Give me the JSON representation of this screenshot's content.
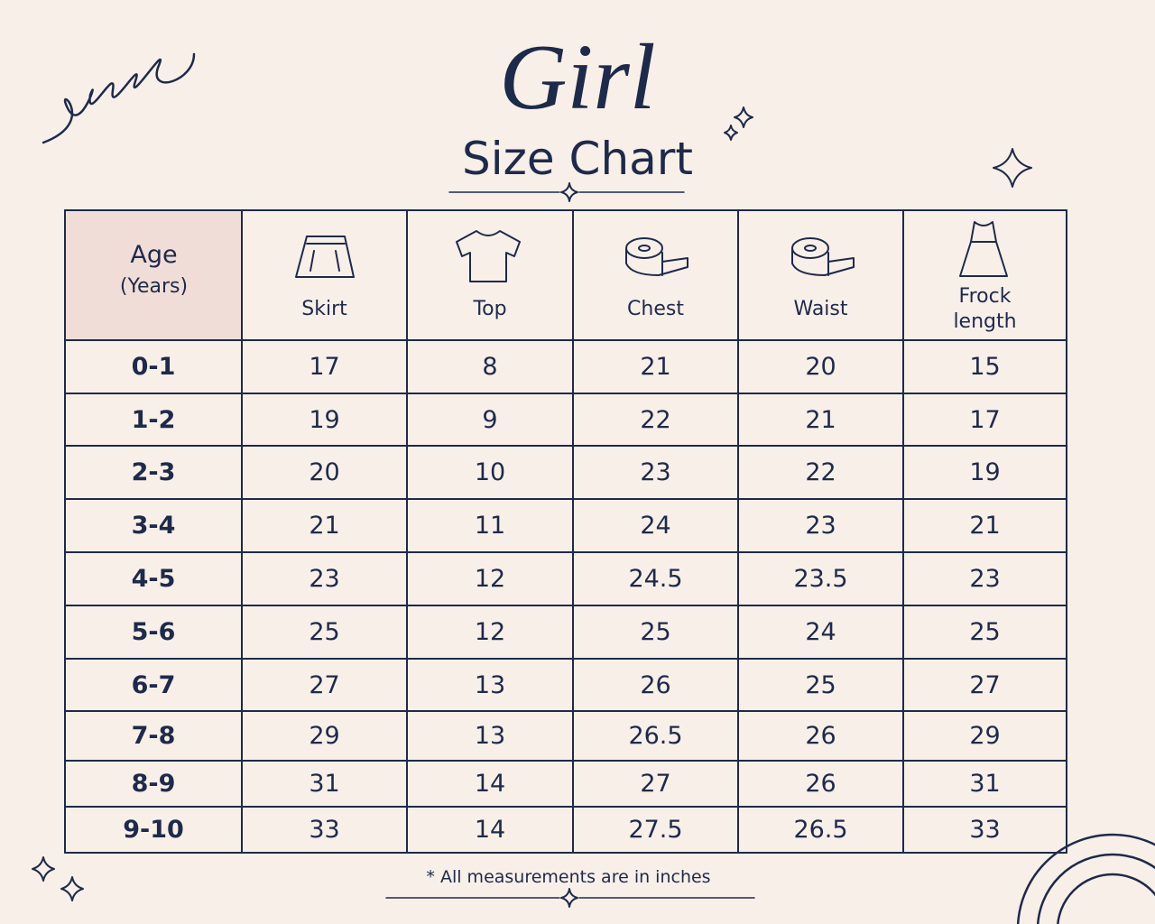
{
  "header": {
    "title": "Girl",
    "subtitle": "Size Chart"
  },
  "table": {
    "columns": [
      {
        "label": "Age",
        "unit": "(Years)"
      },
      "Skirt",
      "Top",
      "Chest",
      "Waist",
      "Frock length"
    ],
    "rows": [
      [
        "0-1",
        "17",
        "8",
        "21",
        "20",
        "15"
      ],
      [
        "1-2",
        "19",
        "9",
        "22",
        "21",
        "17"
      ],
      [
        "2-3",
        "20",
        "10",
        "23",
        "22",
        "19"
      ],
      [
        "3-4",
        "21",
        "11",
        "24",
        "23",
        "21"
      ],
      [
        "4-5",
        "23",
        "12",
        "24.5",
        "23.5",
        "23"
      ],
      [
        "5-6",
        "25",
        "12",
        "25",
        "24",
        "25"
      ],
      [
        "6-7",
        "27",
        "13",
        "26",
        "25",
        "27"
      ],
      [
        "7-8",
        "29",
        "13",
        "26.5",
        "26",
        "29"
      ],
      [
        "8-9",
        "31",
        "14",
        "27",
        "26",
        "31"
      ],
      [
        "9-10",
        "33",
        "14",
        "27.5",
        "26.5",
        "33"
      ]
    ]
  },
  "footer": {
    "note": "* All measurements are in inches"
  }
}
